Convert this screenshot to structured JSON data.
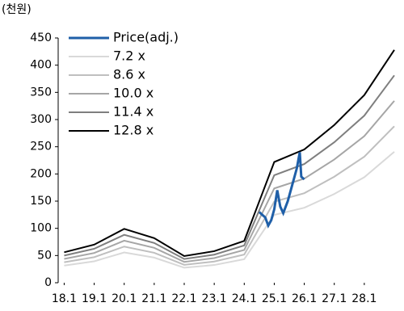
{
  "chart_data": {
    "type": "line",
    "title": "(천원)",
    "x": [
      18,
      19,
      20,
      21,
      22,
      23,
      24,
      25,
      26,
      27,
      28,
      29
    ],
    "series": [
      {
        "name": "Price(adj.)",
        "color": "#1f5fa8",
        "x": [
          24.5,
          24.6,
          24.7,
          24.8,
          24.9,
          25.0,
          25.1,
          25.2,
          25.3,
          25.45,
          25.6,
          25.75,
          25.85,
          25.9,
          26.0
        ],
        "values": [
          130,
          125,
          120,
          105,
          115,
          135,
          170,
          140,
          128,
          150,
          180,
          210,
          240,
          195,
          190
        ]
      },
      {
        "name": "7.2 x",
        "color": "#d9d9d9",
        "values": [
          31.5,
          39.4,
          55.7,
          46.2,
          27.6,
          32.6,
          43.3,
          124.8,
          137.8,
          163.2,
          194.0,
          240.8
        ]
      },
      {
        "name": "8.6 x",
        "color": "#bfbfbf",
        "values": [
          37.7,
          47.0,
          66.5,
          55.1,
          32.9,
          39.0,
          51.8,
          149.1,
          164.6,
          194.9,
          231.8,
          287.6
        ]
      },
      {
        "name": "10.0 x",
        "color": "#a6a6a6",
        "values": [
          43.8,
          54.7,
          77.3,
          64.1,
          38.3,
          45.3,
          60.2,
          173.4,
          191.4,
          226.6,
          269.5,
          334.4
        ]
      },
      {
        "name": "11.4 x",
        "color": "#7f7f7f",
        "values": [
          49.9,
          62.4,
          88.1,
          73.1,
          43.7,
          51.6,
          68.6,
          197.7,
          218.2,
          258.3,
          307.2,
          381.2
        ]
      },
      {
        "name": "12.8 x",
        "color": "#000000",
        "values": [
          56,
          70,
          99,
          82,
          49,
          58,
          77,
          222,
          245,
          290,
          345,
          428
        ]
      }
    ],
    "xlim": [
      17.8,
      29
    ],
    "xticks": [
      {
        "value": 18,
        "label": "18.1"
      },
      {
        "value": 19,
        "label": "19.1"
      },
      {
        "value": 20,
        "label": "20.1"
      },
      {
        "value": 21,
        "label": "21.1"
      },
      {
        "value": 22,
        "label": "22.1"
      },
      {
        "value": 23,
        "label": "23.1"
      },
      {
        "value": 24,
        "label": "24.1"
      },
      {
        "value": 25,
        "label": "25.1"
      },
      {
        "value": 26,
        "label": "26.1"
      },
      {
        "value": 27,
        "label": "27.1"
      },
      {
        "value": 28,
        "label": "28.1"
      }
    ],
    "ylim": [
      0,
      450
    ],
    "yticks": [
      0,
      50,
      100,
      150,
      200,
      250,
      300,
      350,
      400,
      450
    ],
    "legend": "top-left"
  }
}
